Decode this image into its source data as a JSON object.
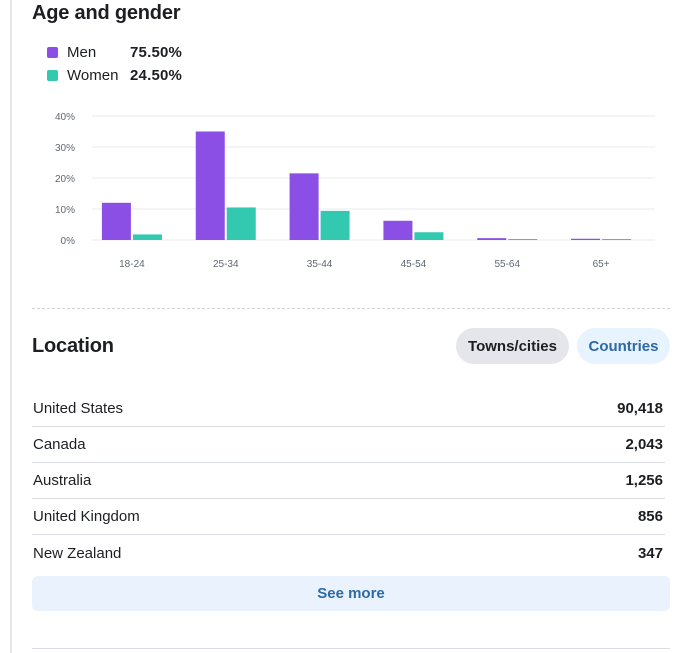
{
  "age_gender": {
    "title": "Age and gender",
    "legend": [
      {
        "label": "Men",
        "value": "75.50%",
        "color": "#8b4fe6"
      },
      {
        "label": "Women",
        "value": "24.50%",
        "color": "#33c9b0"
      }
    ]
  },
  "chart_data": {
    "type": "bar",
    "categories": [
      "18-24",
      "25-34",
      "35-44",
      "45-54",
      "55-64",
      "65+"
    ],
    "series": [
      {
        "name": "Men",
        "color": "#8b4fe6",
        "values": [
          12,
          35,
          21.5,
          6.2,
          0.6,
          0.4
        ]
      },
      {
        "name": "Women",
        "color": "#33c9b0",
        "values": [
          1.8,
          10.5,
          9.4,
          2.5,
          0.3,
          0.2
        ]
      }
    ],
    "y_ticks": [
      "40%",
      "30%",
      "20%",
      "10%",
      "0%"
    ],
    "ylim": [
      0,
      40
    ],
    "grid": true,
    "legend_position": "top-left"
  },
  "location": {
    "title": "Location",
    "toggle": {
      "towns": "Towns/cities",
      "countries": "Countries"
    },
    "rows": [
      {
        "name": "United States",
        "value": "90,418"
      },
      {
        "name": "Canada",
        "value": "2,043"
      },
      {
        "name": "Australia",
        "value": "1,256"
      },
      {
        "name": "United Kingdom",
        "value": "856"
      },
      {
        "name": "New Zealand",
        "value": "347"
      }
    ],
    "see_more": "See more"
  }
}
